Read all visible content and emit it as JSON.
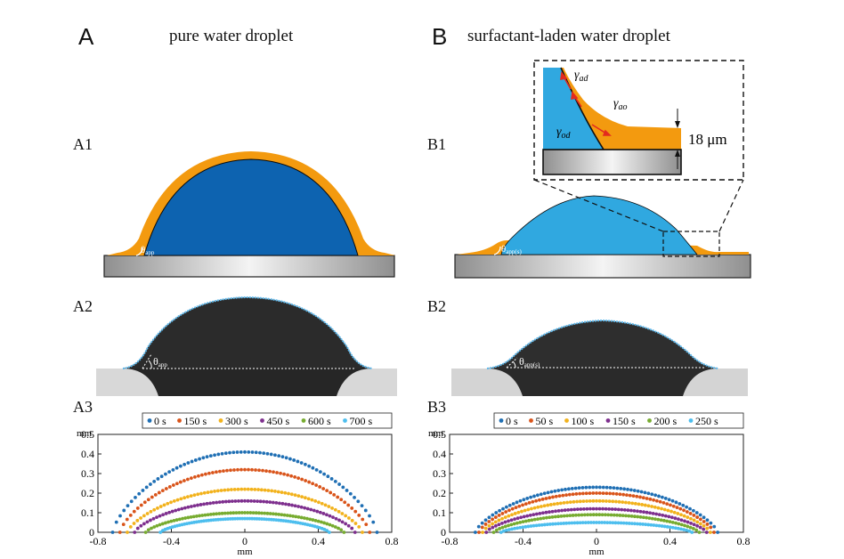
{
  "colors": {
    "pure_drop": "#0d63b0",
    "surf_drop": "#30a8e0",
    "oil": "#f39a0f",
    "arrow": "#e32a1f"
  },
  "panelA": {
    "letter": "A",
    "title": "pure water droplet",
    "A1": "A1",
    "A2": "A2",
    "A3": "A3",
    "angle_label": "θ",
    "angle_sub": "app"
  },
  "panelB": {
    "letter": "B",
    "title": "surfactant-laden water droplet",
    "B1": "B1",
    "B2": "B2",
    "B3": "B3",
    "angle_label": "θ",
    "angle_sub": "app(s)",
    "inset": {
      "gamma": "γ",
      "ad": "ad",
      "ao": "ao",
      "od": "od",
      "thickness": "18 μm"
    }
  },
  "chart_data": [
    {
      "type": "scatter",
      "panel": "A3",
      "ylabel": "mm",
      "xlabel": "mm",
      "xlim": [
        -0.8,
        0.8
      ],
      "ylim": [
        0,
        0.5
      ],
      "xticks": [
        "-0.8",
        "-0.4",
        "0",
        "0.4",
        "0.8"
      ],
      "yticks": [
        "0",
        "0.1",
        "0.2",
        "0.3",
        "0.4",
        "0.5"
      ],
      "legend_position": "top",
      "series": [
        {
          "name": "0 s",
          "color": "#1f6fb4",
          "half_width": 0.72,
          "height": 0.41
        },
        {
          "name": "150 s",
          "color": "#d9541a",
          "half_width": 0.68,
          "height": 0.32
        },
        {
          "name": "300 s",
          "color": "#f2b21c",
          "half_width": 0.64,
          "height": 0.22
        },
        {
          "name": "450 s",
          "color": "#7e2f8e",
          "half_width": 0.6,
          "height": 0.16
        },
        {
          "name": "600 s",
          "color": "#77ac30",
          "half_width": 0.54,
          "height": 0.1
        },
        {
          "name": "700 s",
          "color": "#4dbeee",
          "half_width": 0.46,
          "height": 0.07
        }
      ]
    },
    {
      "type": "scatter",
      "panel": "B3",
      "ylabel": "mm",
      "xlabel": "mm",
      "xlim": [
        -0.8,
        0.8
      ],
      "ylim": [
        0,
        0.5
      ],
      "xticks": [
        "-0.8",
        "-0.4",
        "0",
        "0.4",
        "0.8"
      ],
      "yticks": [
        "0",
        "0.1",
        "0.2",
        "0.3",
        "0.4",
        "0.5"
      ],
      "legend_position": "top",
      "series": [
        {
          "name": "0 s",
          "color": "#1f6fb4",
          "half_width": 0.66,
          "height": 0.23
        },
        {
          "name": "50 s",
          "color": "#d9541a",
          "half_width": 0.64,
          "height": 0.2
        },
        {
          "name": "100 s",
          "color": "#f2b21c",
          "half_width": 0.62,
          "height": 0.16
        },
        {
          "name": "150 s",
          "color": "#7e2f8e",
          "half_width": 0.6,
          "height": 0.12
        },
        {
          "name": "200 s",
          "color": "#77ac30",
          "half_width": 0.56,
          "height": 0.09
        },
        {
          "name": "250 s",
          "color": "#4dbeee",
          "half_width": 0.52,
          "height": 0.05
        }
      ]
    }
  ]
}
